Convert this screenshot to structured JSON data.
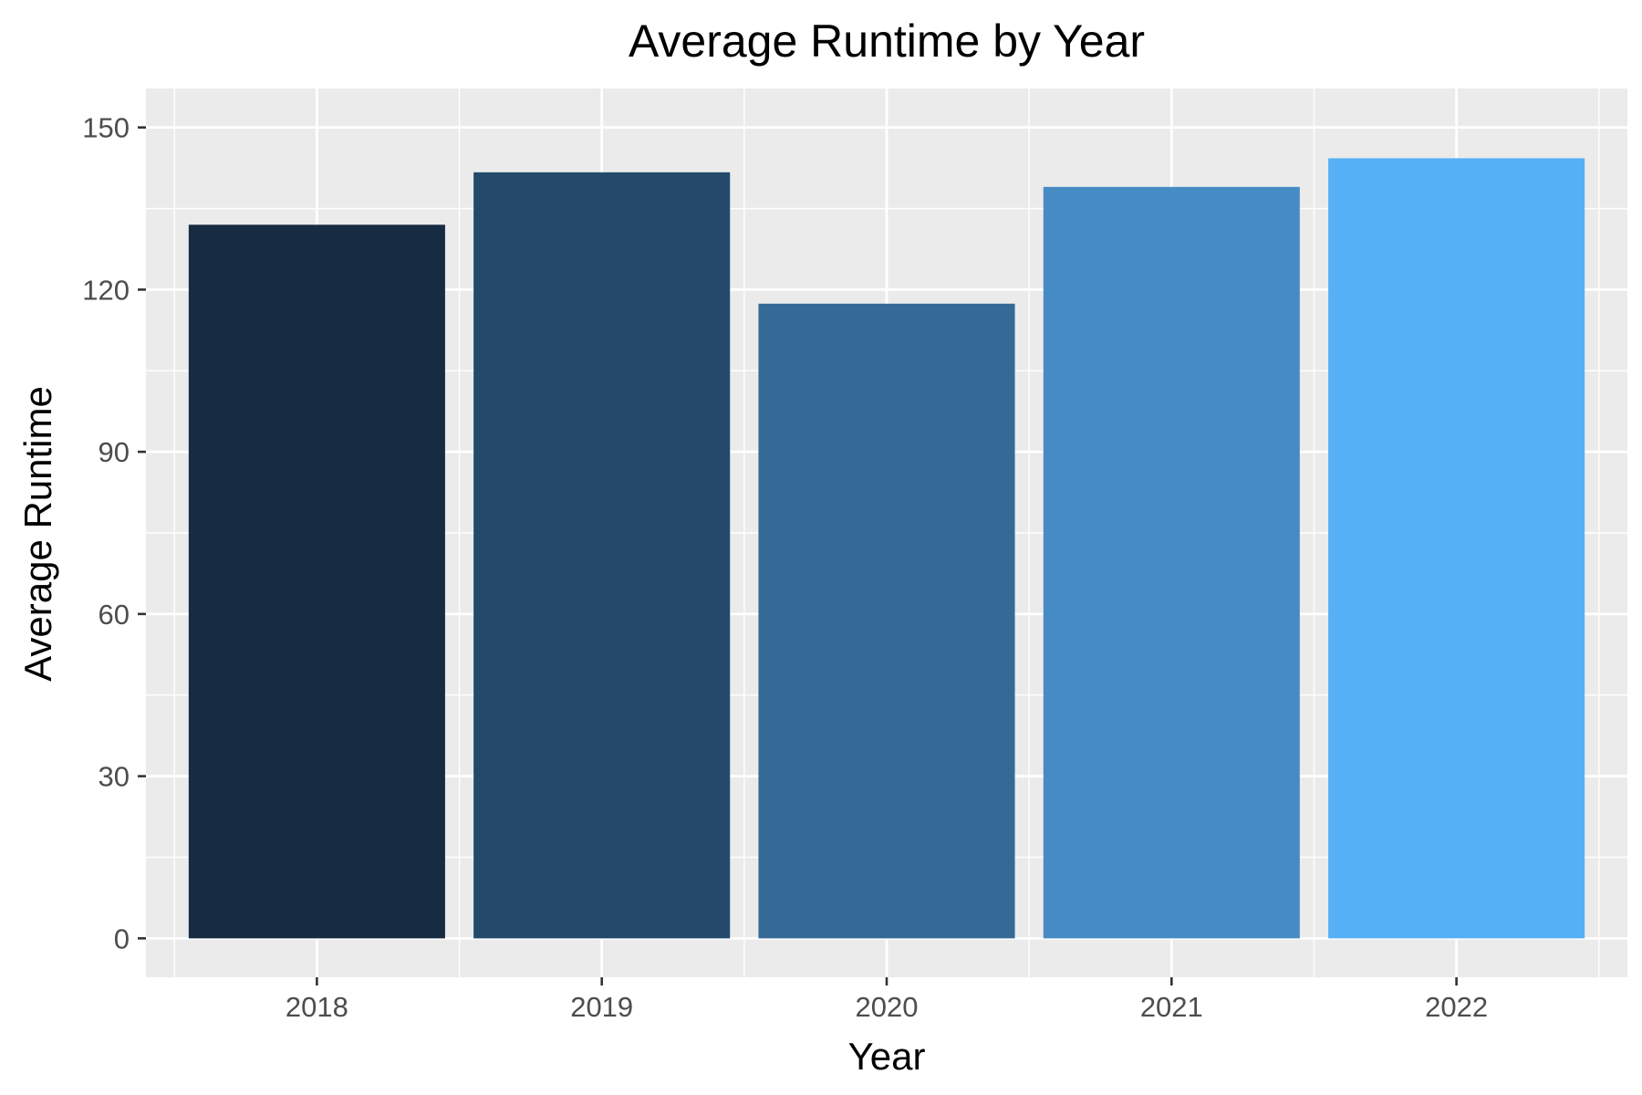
{
  "chart_data": {
    "type": "bar",
    "title": "Average Runtime by Year",
    "xlabel": "Year",
    "ylabel": "Average Runtime",
    "categories": [
      "2018",
      "2019",
      "2020",
      "2021",
      "2022"
    ],
    "values": [
      132,
      141.7,
      117.4,
      139,
      144.3
    ],
    "colors": [
      "#172B43",
      "#24496B",
      "#366A96",
      "#478BC5",
      "#56B0F5"
    ],
    "ylim": [
      -7.2,
      157.2
    ],
    "yticks": [
      0,
      30,
      60,
      90,
      120,
      150
    ],
    "grid": true,
    "panel_background": "#EBEBEB",
    "legend": "none"
  }
}
